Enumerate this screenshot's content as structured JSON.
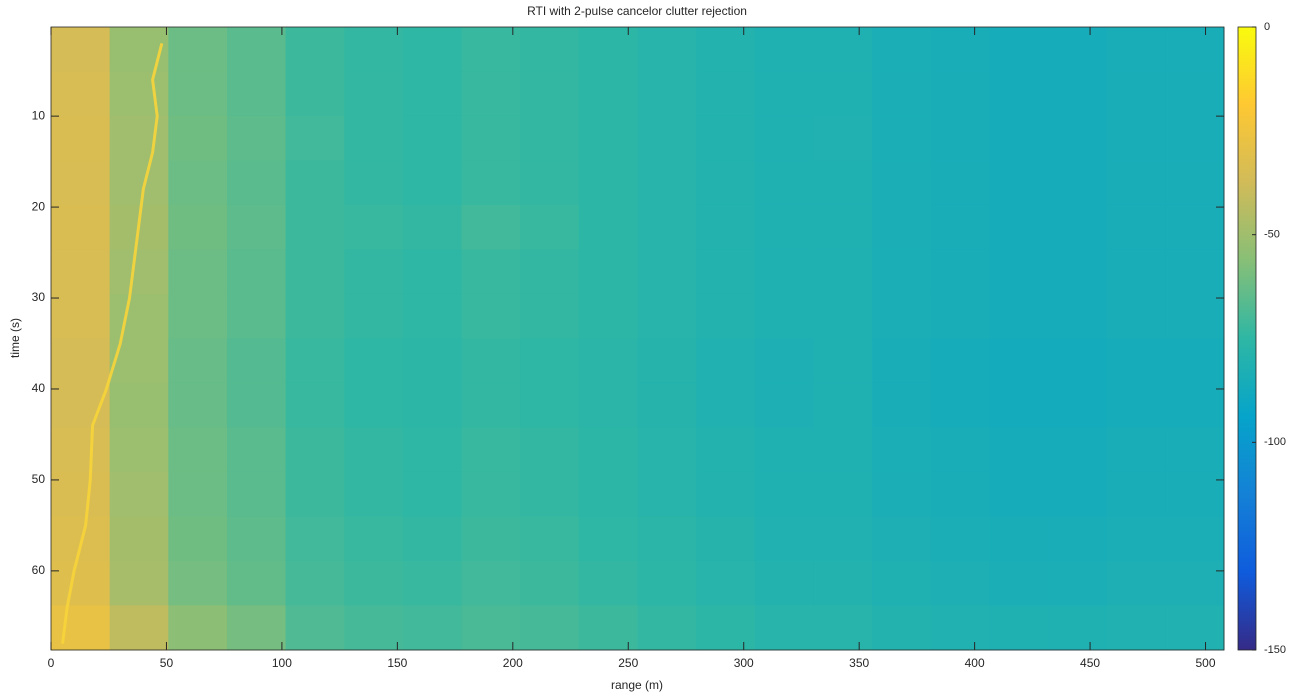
{
  "chart_data": {
    "type": "heatmap",
    "title": "RTI with 2-pulse cancelor clutter rejection",
    "x_label": "range (m)",
    "y_label": "time (s)",
    "xlim": [
      0,
      508
    ],
    "xticks": [
      0,
      50,
      100,
      150,
      200,
      250,
      300,
      350,
      400,
      450,
      500
    ],
    "ylim": [
      0.2,
      68.7
    ],
    "yticks": [
      10,
      20,
      30,
      40,
      50,
      60
    ],
    "y_reversed": true,
    "clim": [
      -150,
      0
    ],
    "cticks": [
      0,
      -50,
      -100,
      -150
    ],
    "colormap": [
      "#352a87",
      "#0f5cdd",
      "#1481d6",
      "#06a4ca",
      "#2eb7a4",
      "#87bf77",
      "#d1bb59",
      "#fec832",
      "#f9fb0e"
    ],
    "x": [
      12.7,
      38.1,
      63.5,
      88.9,
      114.3,
      139.7,
      165.1,
      190.5,
      215.9,
      241.3,
      266.7,
      292.1,
      317.5,
      342.9,
      368.3,
      393.7,
      419.1,
      444.5,
      469.9,
      495.3
    ],
    "y": [
      2.65,
      7.54,
      12.43,
      17.32,
      22.21,
      27.11,
      32.0,
      36.89,
      41.78,
      46.67,
      51.56,
      56.46,
      61.35,
      66.24
    ],
    "z": [
      [
        -36,
        -52,
        -62,
        -66,
        -72,
        -74,
        -75,
        -73,
        -74,
        -76,
        -78,
        -80,
        -82,
        -82,
        -84,
        -85,
        -86,
        -86,
        -85,
        -85
      ],
      [
        -35,
        -51,
        -62,
        -66,
        -72,
        -74,
        -75,
        -73,
        -74,
        -76,
        -78,
        -80,
        -82,
        -82,
        -84,
        -85,
        -86,
        -86,
        -85,
        -85
      ],
      [
        -34,
        -50,
        -61,
        -65,
        -71,
        -74,
        -75,
        -73,
        -74,
        -76,
        -78,
        -80,
        -82,
        -81,
        -84,
        -85,
        -86,
        -86,
        -85,
        -85
      ],
      [
        -35,
        -50,
        -62,
        -66,
        -72,
        -74,
        -75,
        -73,
        -74,
        -76,
        -78,
        -80,
        -82,
        -82,
        -84,
        -85,
        -86,
        -86,
        -85,
        -85
      ],
      [
        -34,
        -49,
        -61,
        -65,
        -72,
        -73,
        -74,
        -71,
        -73,
        -76,
        -78,
        -80,
        -82,
        -82,
        -84,
        -85,
        -86,
        -86,
        -85,
        -85
      ],
      [
        -35,
        -50,
        -62,
        -66,
        -72,
        -74,
        -75,
        -73,
        -74,
        -76,
        -78,
        -80,
        -82,
        -82,
        -84,
        -85,
        -86,
        -86,
        -85,
        -85
      ],
      [
        -35,
        -51,
        -62,
        -66,
        -72,
        -74,
        -75,
        -73,
        -74,
        -76,
        -78,
        -80,
        -82,
        -82,
        -84,
        -85,
        -86,
        -86,
        -85,
        -85
      ],
      [
        -36,
        -51,
        -63,
        -67,
        -73,
        -75,
        -76,
        -74,
        -75,
        -77,
        -79,
        -81,
        -83,
        -82,
        -85,
        -86,
        -87,
        -87,
        -86,
        -86
      ],
      [
        -36,
        -52,
        -63,
        -67,
        -73,
        -75,
        -76,
        -74,
        -75,
        -77,
        -79,
        -81,
        -83,
        -82,
        -85,
        -86,
        -87,
        -87,
        -86,
        -86
      ],
      [
        -35,
        -51,
        -62,
        -66,
        -72,
        -74,
        -75,
        -73,
        -74,
        -76,
        -78,
        -80,
        -82,
        -82,
        -84,
        -85,
        -86,
        -86,
        -85,
        -85
      ],
      [
        -34,
        -50,
        -62,
        -66,
        -72,
        -74,
        -75,
        -73,
        -74,
        -76,
        -78,
        -80,
        -82,
        -82,
        -84,
        -85,
        -86,
        -86,
        -85,
        -85
      ],
      [
        -33,
        -49,
        -61,
        -65,
        -71,
        -73,
        -74,
        -72,
        -73,
        -75,
        -77,
        -79,
        -81,
        -81,
        -83,
        -84,
        -85,
        -85,
        -84,
        -84
      ],
      [
        -32,
        -48,
        -60,
        -64,
        -70,
        -72,
        -73,
        -71,
        -72,
        -74,
        -76,
        -78,
        -80,
        -80,
        -82,
        -83,
        -84,
        -84,
        -83,
        -83
      ],
      [
        -28,
        -42,
        -55,
        -60,
        -68,
        -70,
        -71,
        -69,
        -70,
        -72,
        -74,
        -76,
        -78,
        -78,
        -80,
        -81,
        -82,
        -82,
        -81,
        -81
      ]
    ],
    "track": {
      "color": "#f7d43a",
      "x": [
        48,
        44,
        46,
        44,
        40,
        38,
        36,
        34,
        30,
        24,
        18,
        17,
        15,
        10,
        7,
        5
      ],
      "y": [
        2,
        6,
        10,
        14,
        18,
        22,
        26,
        30,
        35,
        40,
        44,
        50,
        55,
        60,
        64,
        68
      ]
    }
  }
}
